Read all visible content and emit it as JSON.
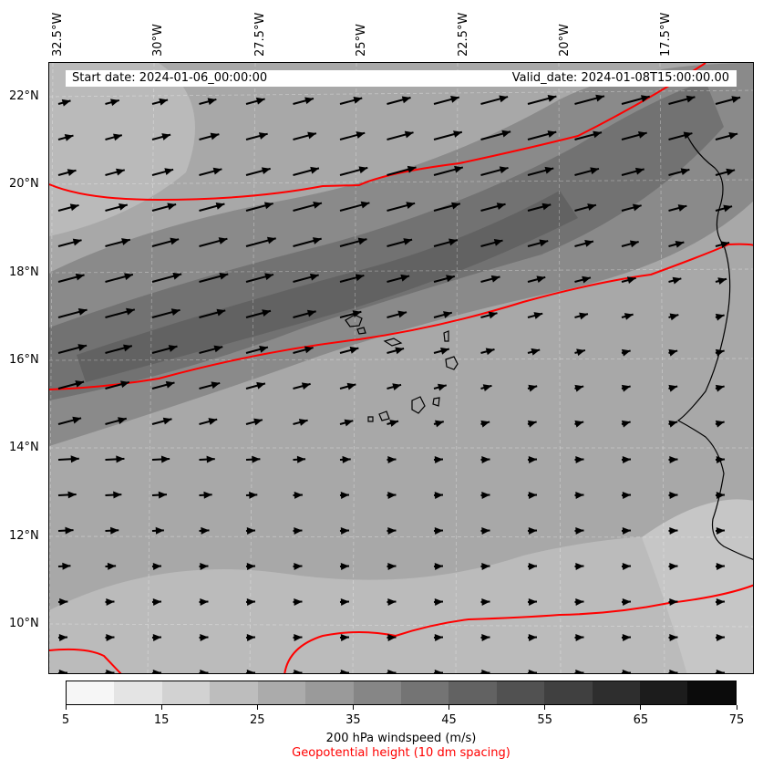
{
  "map": {
    "start_date": "Start date: 2024-01-06_00:00:00",
    "valid_date": "Valid_date: 2024-01-08T15:00:00.00",
    "longitude_labels": [
      "32.5°W",
      "30°W",
      "27.5°W",
      "25°W",
      "22.5°W",
      "20°W",
      "17.5°W"
    ],
    "latitude_labels": [
      "22°N",
      "20°N",
      "18°N",
      "16°N",
      "14°N",
      "12°N",
      "10°N"
    ],
    "windspeed_label": "200 hPa windspeed (m/s)",
    "geopotential_label": "Geopotential height (10 dm spacing)",
    "geopotential_color": "#ff0000",
    "colorbar_ticks": [
      "5",
      "15",
      "25",
      "35",
      "45",
      "55",
      "65",
      "75"
    ],
    "colorbar_colors": [
      "#f6f6f6",
      "#e4e4e4",
      "#d2d2d2",
      "#bdbdbd",
      "#ababab",
      "#9a9a9a",
      "#868686",
      "#747474",
      "#626262",
      "#515151",
      "#404040",
      "#2e2e2e",
      "#1c1c1c",
      "#0b0b0b"
    ]
  }
}
